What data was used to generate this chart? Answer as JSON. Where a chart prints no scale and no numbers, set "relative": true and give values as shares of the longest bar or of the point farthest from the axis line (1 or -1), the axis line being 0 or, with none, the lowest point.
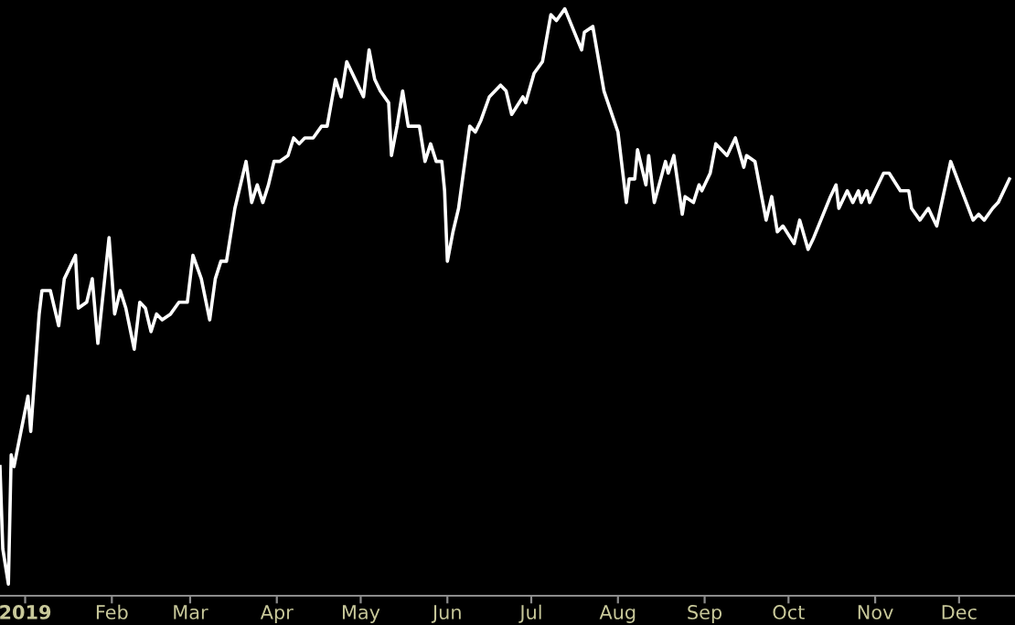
{
  "chart_data": {
    "type": "line",
    "relative": true,
    "grid": false,
    "marker": "none",
    "line_style": "solid",
    "xlim": [
      "2018-12-23",
      "2019-12-21"
    ],
    "xticks": [
      {
        "value": "2019-01-01",
        "label": "2019"
      },
      {
        "value": "2019-02-01",
        "label": "Feb"
      },
      {
        "value": "2019-03-01",
        "label": "Mar"
      },
      {
        "value": "2019-04-01",
        "label": "Apr"
      },
      {
        "value": "2019-05-01",
        "label": "May"
      },
      {
        "value": "2019-06-01",
        "label": "Jun"
      },
      {
        "value": "2019-07-01",
        "label": "Jul"
      },
      {
        "value": "2019-08-01",
        "label": "Aug"
      },
      {
        "value": "2019-09-01",
        "label": "Sep"
      },
      {
        "value": "2019-10-01",
        "label": "Oct"
      },
      {
        "value": "2019-11-01",
        "label": "Nov"
      },
      {
        "value": "2019-12-01",
        "label": "Dec"
      }
    ],
    "x": [
      "2018-12-23",
      "2018-12-24",
      "2018-12-26",
      "2018-12-27",
      "2018-12-28",
      "2019-01-02",
      "2019-01-03",
      "2019-01-06",
      "2019-01-07",
      "2019-01-10",
      "2019-01-13",
      "2019-01-15",
      "2019-01-19",
      "2019-01-20",
      "2019-01-23",
      "2019-01-25",
      "2019-01-27",
      "2019-01-31",
      "2019-02-02",
      "2019-02-04",
      "2019-02-06",
      "2019-02-09",
      "2019-02-11",
      "2019-02-13",
      "2019-02-15",
      "2019-02-17",
      "2019-02-19",
      "2019-02-22",
      "2019-02-25",
      "2019-02-28",
      "2019-03-02",
      "2019-03-05",
      "2019-03-08",
      "2019-03-10",
      "2019-03-12",
      "2019-03-14",
      "2019-03-17",
      "2019-03-21",
      "2019-03-23",
      "2019-03-25",
      "2019-03-27",
      "2019-03-29",
      "2019-03-31",
      "2019-04-02",
      "2019-04-05",
      "2019-04-07",
      "2019-04-09",
      "2019-04-11",
      "2019-04-14",
      "2019-04-17",
      "2019-04-19",
      "2019-04-22",
      "2019-04-24",
      "2019-04-26",
      "2019-04-30",
      "2019-05-02",
      "2019-05-04",
      "2019-05-06",
      "2019-05-08",
      "2019-05-11",
      "2019-05-12",
      "2019-05-14",
      "2019-05-16",
      "2019-05-18",
      "2019-05-22",
      "2019-05-24",
      "2019-05-26",
      "2019-05-28",
      "2019-05-30",
      "2019-05-31",
      "2019-06-01",
      "2019-06-03",
      "2019-06-05",
      "2019-06-09",
      "2019-06-11",
      "2019-06-13",
      "2019-06-16",
      "2019-06-20",
      "2019-06-22",
      "2019-06-24",
      "2019-06-28",
      "2019-06-29",
      "2019-07-02",
      "2019-07-05",
      "2019-07-08",
      "2019-07-10",
      "2019-07-13",
      "2019-07-19",
      "2019-07-20",
      "2019-07-23",
      "2019-07-27",
      "2019-08-01",
      "2019-08-04",
      "2019-08-05",
      "2019-08-07",
      "2019-08-08",
      "2019-08-11",
      "2019-08-12",
      "2019-08-14",
      "2019-08-18",
      "2019-08-19",
      "2019-08-21",
      "2019-08-24",
      "2019-08-25",
      "2019-08-28",
      "2019-08-30",
      "2019-08-31",
      "2019-09-03",
      "2019-09-05",
      "2019-09-09",
      "2019-09-12",
      "2019-09-15",
      "2019-09-16",
      "2019-09-19",
      "2019-09-23",
      "2019-09-25",
      "2019-09-27",
      "2019-09-29",
      "2019-10-03",
      "2019-10-05",
      "2019-10-08",
      "2019-10-10",
      "2019-10-16",
      "2019-10-18",
      "2019-10-19",
      "2019-10-22",
      "2019-10-24",
      "2019-10-26",
      "2019-10-27",
      "2019-10-29",
      "2019-10-30",
      "2019-11-01",
      "2019-11-04",
      "2019-11-06",
      "2019-11-10",
      "2019-11-13",
      "2019-11-14",
      "2019-11-17",
      "2019-11-20",
      "2019-11-23",
      "2019-11-28",
      "2019-12-02",
      "2019-12-06",
      "2019-12-08",
      "2019-12-10",
      "2019-12-13",
      "2019-12-15",
      "2019-12-19"
    ],
    "series": [
      {
        "color": "#ffffff",
        "values": [
          0.22,
          0.08,
          0.02,
          0.24,
          0.22,
          0.34,
          0.28,
          0.48,
          0.52,
          0.52,
          0.46,
          0.54,
          0.58,
          0.49,
          0.5,
          0.54,
          0.43,
          0.61,
          0.48,
          0.52,
          0.49,
          0.42,
          0.5,
          0.49,
          0.45,
          0.48,
          0.47,
          0.48,
          0.5,
          0.5,
          0.58,
          0.54,
          0.47,
          0.54,
          0.57,
          0.57,
          0.66,
          0.74,
          0.67,
          0.7,
          0.67,
          0.7,
          0.74,
          0.74,
          0.75,
          0.78,
          0.77,
          0.78,
          0.78,
          0.8,
          0.8,
          0.88,
          0.85,
          0.91,
          0.87,
          0.85,
          0.93,
          0.88,
          0.86,
          0.84,
          0.75,
          0.8,
          0.86,
          0.8,
          0.8,
          0.74,
          0.77,
          0.74,
          0.74,
          0.69,
          0.57,
          0.62,
          0.66,
          0.8,
          0.79,
          0.81,
          0.85,
          0.87,
          0.86,
          0.82,
          0.85,
          0.84,
          0.89,
          0.91,
          0.99,
          0.98,
          1.0,
          0.93,
          0.96,
          0.97,
          0.86,
          0.79,
          0.67,
          0.71,
          0.71,
          0.76,
          0.7,
          0.75,
          0.67,
          0.74,
          0.72,
          0.75,
          0.65,
          0.68,
          0.67,
          0.7,
          0.69,
          0.72,
          0.77,
          0.75,
          0.78,
          0.73,
          0.75,
          0.74,
          0.64,
          0.68,
          0.62,
          0.63,
          0.6,
          0.64,
          0.59,
          0.61,
          0.68,
          0.7,
          0.66,
          0.69,
          0.67,
          0.69,
          0.67,
          0.69,
          0.67,
          0.69,
          0.72,
          0.72,
          0.69,
          0.69,
          0.66,
          0.64,
          0.66,
          0.63,
          0.74,
          0.69,
          0.64,
          0.65,
          0.64,
          0.66,
          0.67,
          0.71
        ]
      }
    ]
  }
}
